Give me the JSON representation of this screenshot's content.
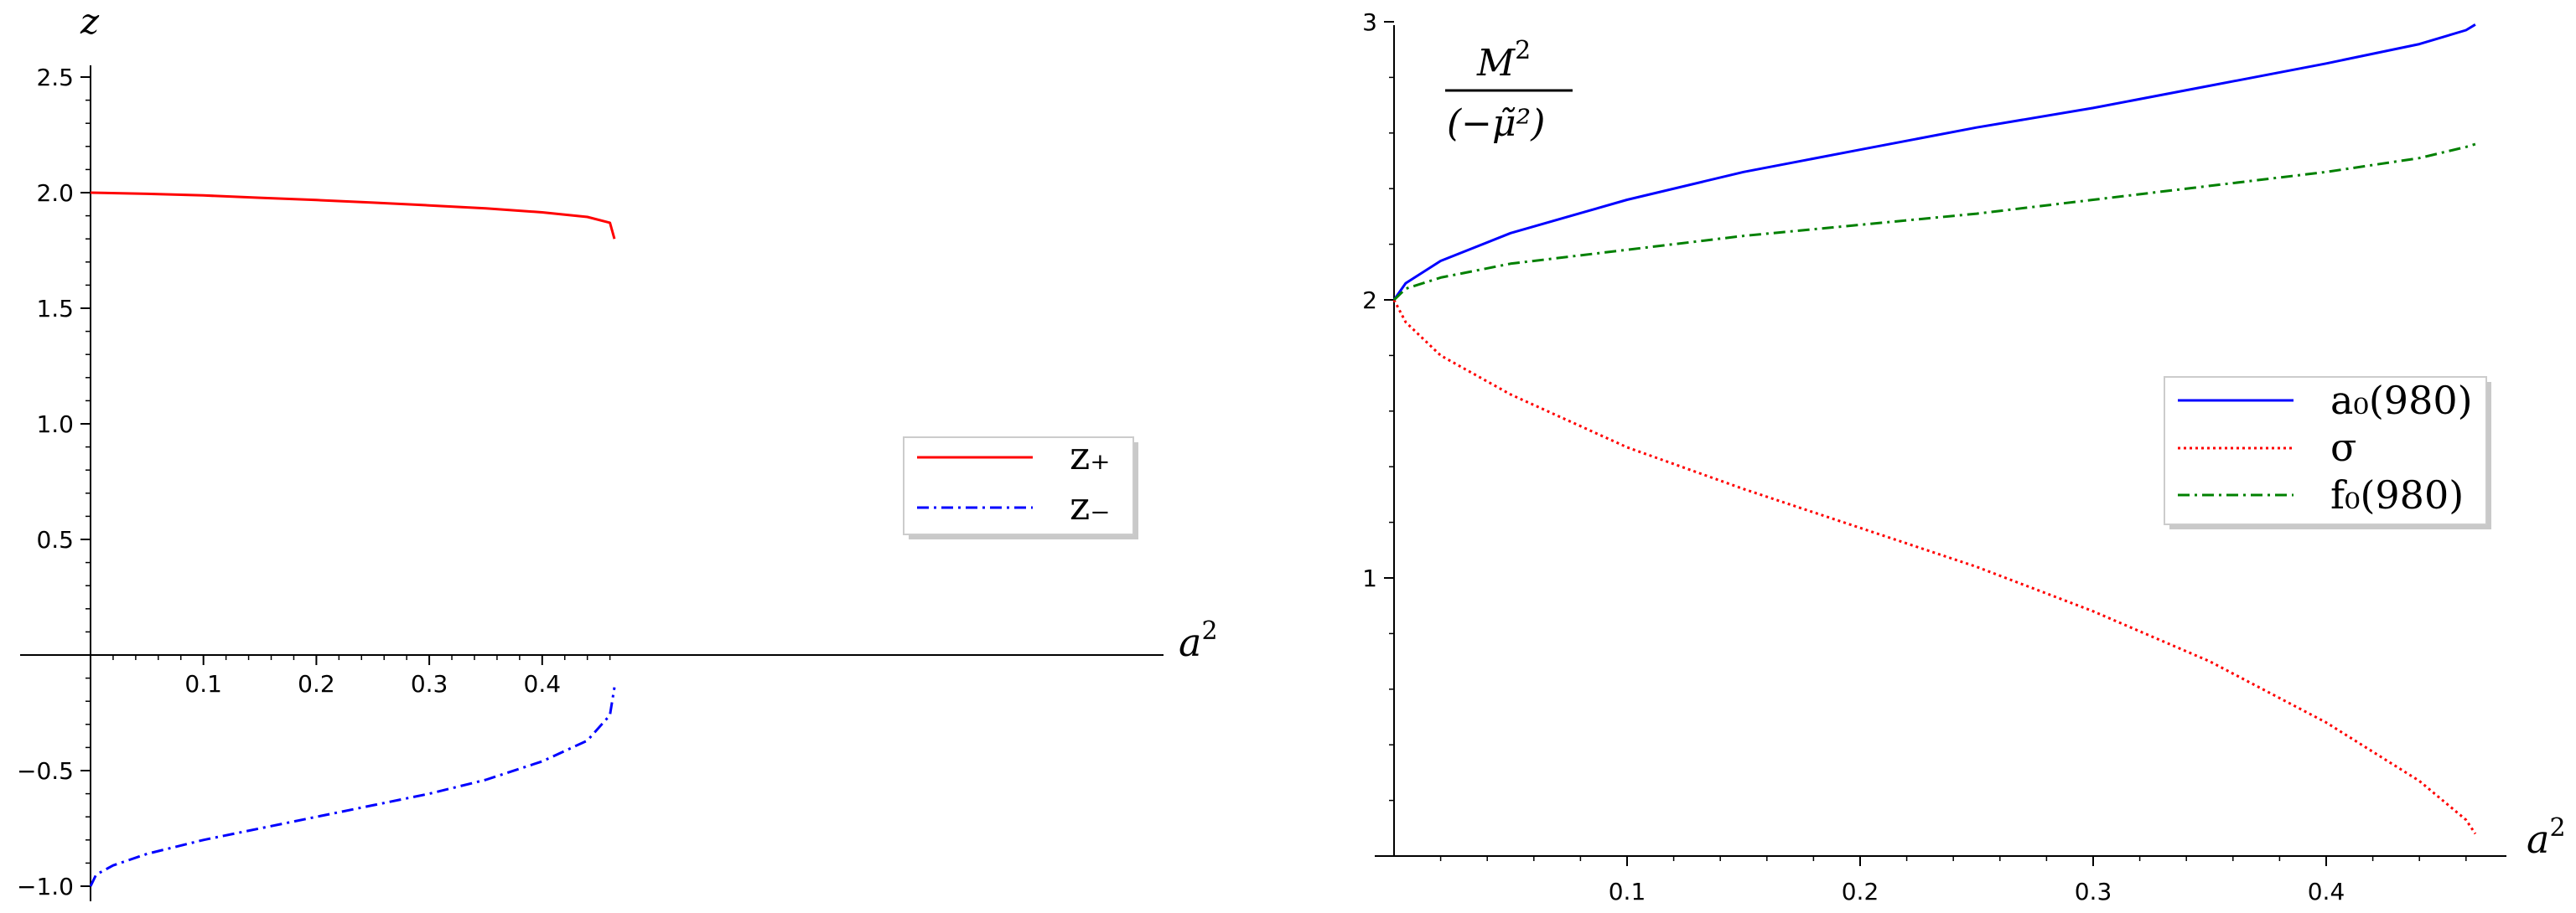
{
  "chart_data": [
    {
      "type": "line",
      "title": "",
      "ylabel": "z",
      "xlabel": "a²",
      "xlim": [
        0,
        0.48
      ],
      "ylim": [
        -1.0,
        2.55
      ],
      "xticks": [
        0.1,
        0.2,
        0.3,
        0.4
      ],
      "yticks": [
        2.5,
        2.0,
        1.5,
        1.0,
        0.5,
        -0.5,
        -1.0
      ],
      "xtick_labels": [
        "0.1",
        "0.2",
        "0.3",
        "0.4"
      ],
      "ytick_labels": [
        "2.5",
        "2.0",
        "1.5",
        "1.0",
        "0.5",
        "−0.5",
        "−1.0"
      ],
      "grid": false,
      "legend_position": "right-middle",
      "series": [
        {
          "name": "z₊",
          "color": "#ff0000",
          "dash": "solid",
          "x": [
            0.0,
            0.05,
            0.1,
            0.15,
            0.2,
            0.25,
            0.3,
            0.35,
            0.4,
            0.44,
            0.46,
            0.464
          ],
          "y": [
            2.0,
            1.995,
            1.988,
            1.978,
            1.968,
            1.957,
            1.945,
            1.932,
            1.915,
            1.895,
            1.87,
            1.8
          ]
        },
        {
          "name": "z₋",
          "color": "#0000ff",
          "dash": "dashdot",
          "x": [
            0.0,
            0.005,
            0.02,
            0.05,
            0.1,
            0.15,
            0.2,
            0.25,
            0.3,
            0.35,
            0.4,
            0.44,
            0.46,
            0.464
          ],
          "y": [
            -1.0,
            -0.95,
            -0.91,
            -0.86,
            -0.8,
            -0.75,
            -0.7,
            -0.65,
            -0.6,
            -0.54,
            -0.46,
            -0.37,
            -0.26,
            -0.14
          ]
        }
      ]
    },
    {
      "type": "line",
      "title": "",
      "ylabel": "M² / (−μ̃²)",
      "ylabel_numerator": "M",
      "ylabel_denominator": "(−μ̃²)",
      "xlabel": "a²",
      "xlim": [
        0,
        0.48
      ],
      "ylim": [
        0,
        3.0
      ],
      "xticks": [
        0.1,
        0.2,
        0.3,
        0.4
      ],
      "yticks": [
        1,
        2,
        3
      ],
      "xtick_labels": [
        "0.1",
        "0.2",
        "0.3",
        "0.4"
      ],
      "ytick_labels": [
        "1",
        "2",
        "3"
      ],
      "grid": false,
      "legend_position": "right-middle",
      "series": [
        {
          "name": "a₀(980)",
          "color": "#0000ff",
          "dash": "solid",
          "x": [
            0.0,
            0.005,
            0.02,
            0.05,
            0.1,
            0.15,
            0.2,
            0.25,
            0.3,
            0.35,
            0.4,
            0.44,
            0.46,
            0.464
          ],
          "y": [
            2.0,
            2.06,
            2.14,
            2.24,
            2.36,
            2.46,
            2.54,
            2.62,
            2.69,
            2.77,
            2.85,
            2.92,
            2.97,
            2.99
          ]
        },
        {
          "name": "σ",
          "color": "#ff0000",
          "dash": "dotted",
          "x": [
            0.0,
            0.005,
            0.02,
            0.05,
            0.1,
            0.15,
            0.2,
            0.25,
            0.3,
            0.35,
            0.4,
            0.44,
            0.46,
            0.464
          ],
          "y": [
            2.0,
            1.92,
            1.8,
            1.66,
            1.47,
            1.32,
            1.18,
            1.04,
            0.88,
            0.7,
            0.48,
            0.27,
            0.13,
            0.08
          ]
        },
        {
          "name": "f₀(980)",
          "color": "#008000",
          "dash": "dashdot",
          "x": [
            0.0,
            0.005,
            0.02,
            0.05,
            0.1,
            0.15,
            0.2,
            0.25,
            0.3,
            0.35,
            0.4,
            0.44,
            0.46,
            0.464
          ],
          "y": [
            2.0,
            2.04,
            2.08,
            2.13,
            2.18,
            2.23,
            2.27,
            2.31,
            2.36,
            2.41,
            2.46,
            2.51,
            2.55,
            2.56
          ]
        }
      ]
    }
  ],
  "labels": {
    "left_y_var": "z",
    "left_x_var": "a",
    "left_x_exp": "2",
    "right_x_var": "a",
    "right_x_exp": "2",
    "right_y_num_var": "M",
    "right_y_num_exp": "2",
    "right_y_den": "(−μ̃²)"
  }
}
